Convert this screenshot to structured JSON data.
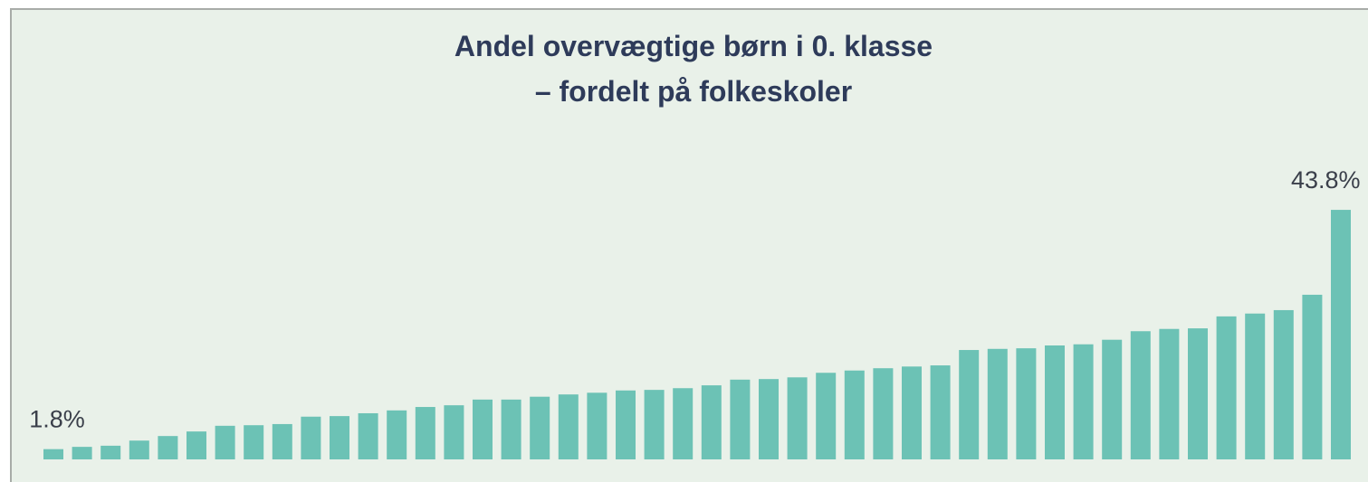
{
  "chart_data": {
    "type": "bar",
    "title": [
      "Andel overvægtige børn i 0. klasse",
      "– fordelt på folkeskoler"
    ],
    "color": "#6cc2b5",
    "values": [
      1.8,
      2.2,
      2.4,
      3.3,
      4.1,
      4.9,
      5.9,
      6.0,
      6.2,
      7.5,
      7.6,
      8.1,
      8.6,
      9.2,
      9.5,
      10.5,
      10.5,
      11.0,
      11.4,
      11.7,
      12.1,
      12.2,
      12.5,
      13.0,
      14.0,
      14.1,
      14.4,
      15.2,
      15.6,
      16.0,
      16.3,
      16.5,
      19.2,
      19.4,
      19.5,
      20.0,
      20.2,
      21.0,
      22.5,
      22.9,
      23.0,
      25.1,
      25.6,
      26.2,
      28.9,
      43.8
    ],
    "value_labels": [
      "1.8%",
      null,
      null,
      null,
      null,
      null,
      null,
      null,
      null,
      null,
      null,
      null,
      null,
      null,
      null,
      null,
      null,
      null,
      null,
      null,
      null,
      null,
      null,
      null,
      null,
      null,
      null,
      null,
      null,
      null,
      null,
      null,
      null,
      null,
      null,
      null,
      null,
      null,
      null,
      null,
      null,
      null,
      null,
      null,
      null,
      "43.8%"
    ]
  }
}
